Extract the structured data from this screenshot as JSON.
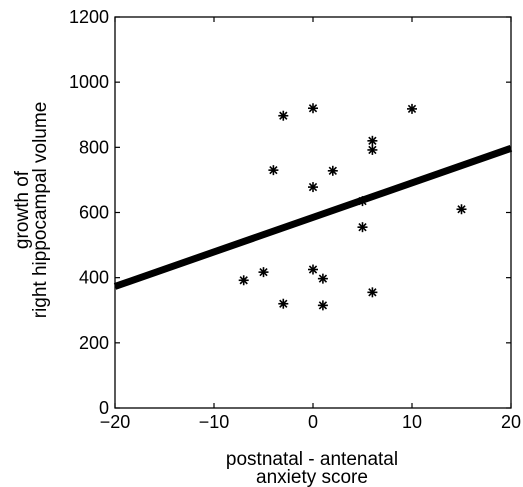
{
  "chart_data": {
    "type": "scatter",
    "title": "",
    "xlabel_lines": [
      "postnatal - antenatal",
      "anxiety score"
    ],
    "ylabel_lines": [
      "growth of",
      "right hippocampal volume"
    ],
    "xlim": [
      -20,
      20
    ],
    "ylim": [
      0,
      1200
    ],
    "xticks": [
      -20,
      -10,
      0,
      10,
      20
    ],
    "xtick_labels": [
      "−20",
      "−10",
      "0",
      "10",
      "20"
    ],
    "yticks": [
      0,
      200,
      400,
      600,
      800,
      1000,
      1200
    ],
    "ytick_labels": [
      "0",
      "200",
      "400",
      "600",
      "800",
      "1000",
      "1200"
    ],
    "grid": false,
    "marker": "asterisk",
    "marker_color": "#000000",
    "points": [
      {
        "x": -7,
        "y": 392
      },
      {
        "x": -5,
        "y": 417
      },
      {
        "x": -4,
        "y": 730
      },
      {
        "x": -3,
        "y": 897
      },
      {
        "x": -3,
        "y": 320
      },
      {
        "x": 0,
        "y": 920
      },
      {
        "x": 0,
        "y": 678
      },
      {
        "x": 0,
        "y": 425
      },
      {
        "x": 1,
        "y": 397
      },
      {
        "x": 1,
        "y": 315
      },
      {
        "x": 2,
        "y": 728
      },
      {
        "x": 5,
        "y": 635
      },
      {
        "x": 5,
        "y": 555
      },
      {
        "x": 6,
        "y": 820
      },
      {
        "x": 6,
        "y": 792
      },
      {
        "x": 6,
        "y": 355
      },
      {
        "x": 10,
        "y": 918
      },
      {
        "x": 15,
        "y": 610
      }
    ],
    "fit_line": {
      "x": [
        -20,
        20
      ],
      "y": [
        373,
        797
      ],
      "color": "#000000"
    }
  }
}
